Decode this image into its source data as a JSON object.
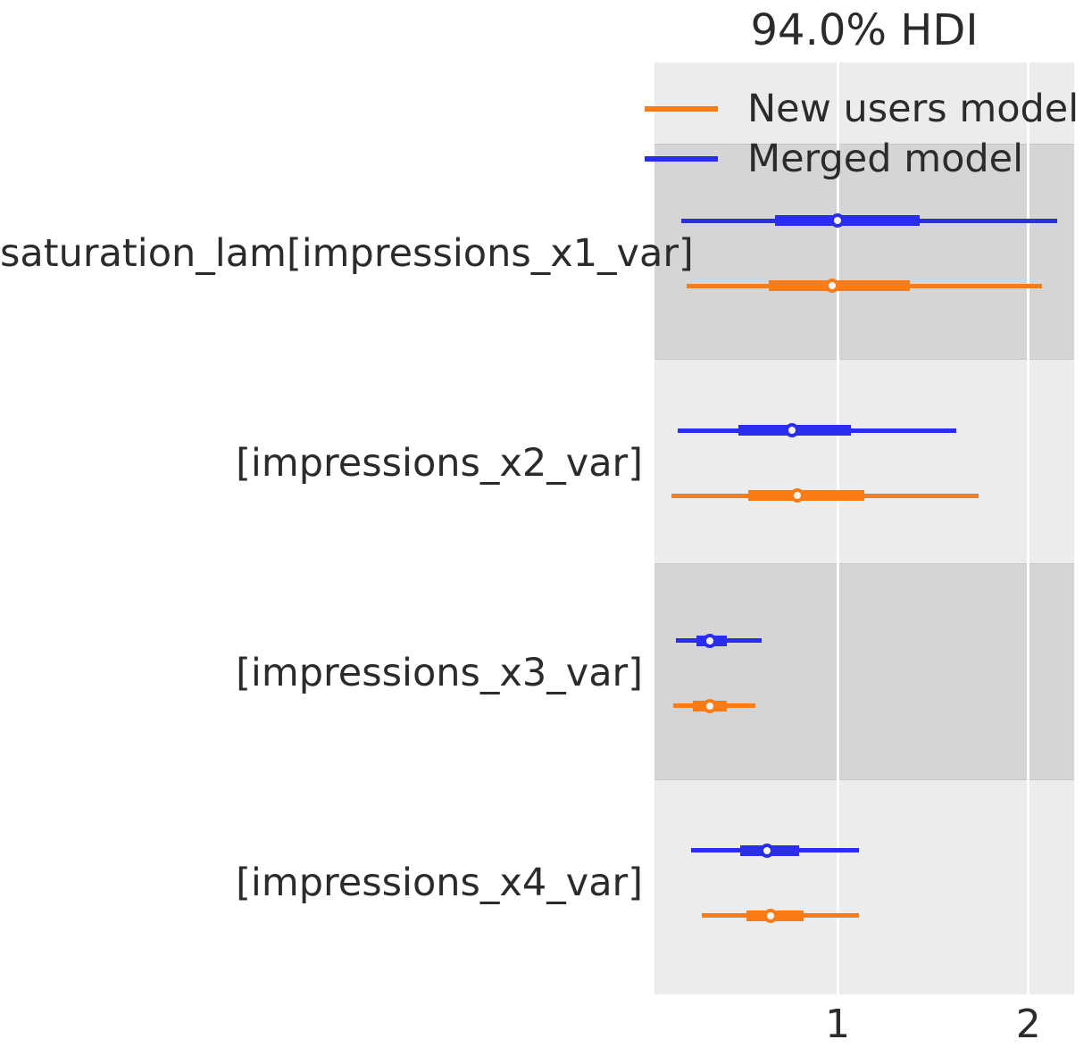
{
  "title": "94.0% HDI",
  "legend": {
    "entries": [
      {
        "label": "New users model",
        "color": "#fa7c17"
      },
      {
        "label": "Merged model",
        "color": "#2a2eec"
      }
    ]
  },
  "colors": {
    "plot_background": "#ececec",
    "shaded_band": "#d5d5d5",
    "gridline": "#ffffff",
    "text": "#2b2b2b",
    "blue_series": "#2a2eec",
    "orange_series": "#fa7c17",
    "marker_fill": "#f4f4f4"
  },
  "x_axis": {
    "tick_labels": [
      "1",
      "2"
    ]
  },
  "chart_data": {
    "type": "forest",
    "title": "94.0% HDI",
    "hdi_probability": "94.0%",
    "xlim": [
      0.04,
      2.24
    ],
    "xticks": [
      1,
      2
    ],
    "grid": "vertical white gridlines",
    "legend_position": "upper left",
    "band_pattern": "alternating shaded bands per variable, first variable shaded",
    "rows": [
      {
        "label": "saturation_lam[impressions_x1_var]",
        "shaded": true,
        "series": [
          {
            "name": "Merged model",
            "color": "#2a2eec",
            "hdi": [
              0.18,
              2.15
            ],
            "quartile": [
              0.67,
              1.43
            ],
            "median": 1.0
          },
          {
            "name": "New users model",
            "color": "#fa7c17",
            "hdi": [
              0.21,
              2.07
            ],
            "quartile": [
              0.64,
              1.38
            ],
            "median": 0.97
          }
        ]
      },
      {
        "label": "[impressions_x2_var]",
        "shaded": false,
        "series": [
          {
            "name": "Merged model",
            "color": "#2a2eec",
            "hdi": [
              0.16,
              1.62
            ],
            "quartile": [
              0.48,
              1.07
            ],
            "median": 0.76
          },
          {
            "name": "New users model",
            "color": "#fa7c17",
            "hdi": [
              0.13,
              1.74
            ],
            "quartile": [
              0.53,
              1.14
            ],
            "median": 0.79
          }
        ]
      },
      {
        "label": "[impressions_x3_var]",
        "shaded": true,
        "series": [
          {
            "name": "Merged model",
            "color": "#2a2eec",
            "hdi": [
              0.15,
              0.6
            ],
            "quartile": [
              0.26,
              0.42
            ],
            "median": 0.33
          },
          {
            "name": "New users model",
            "color": "#fa7c17",
            "hdi": [
              0.14,
              0.57
            ],
            "quartile": [
              0.24,
              0.42
            ],
            "median": 0.33
          }
        ]
      },
      {
        "label": "[impressions_x4_var]",
        "shaded": false,
        "series": [
          {
            "name": "Merged model",
            "color": "#2a2eec",
            "hdi": [
              0.23,
              1.11
            ],
            "quartile": [
              0.49,
              0.8
            ],
            "median": 0.63
          },
          {
            "name": "New users model",
            "color": "#fa7c17",
            "hdi": [
              0.29,
              1.11
            ],
            "quartile": [
              0.52,
              0.82
            ],
            "median": 0.65
          }
        ]
      }
    ]
  }
}
